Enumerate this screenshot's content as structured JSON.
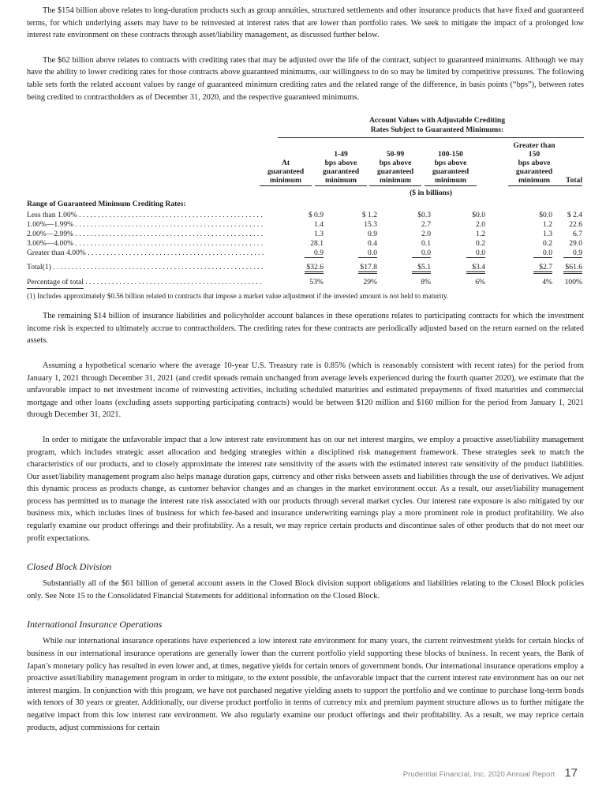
{
  "paragraphs": [
    "The $154 billion above relates to long-duration products such as group annuities, structured settlements and other insurance products that have fixed and guaranteed terms, for which underlying assets may have to be reinvested at interest rates that are lower than portfolio rates. We seek to mitigate the impact of a prolonged low interest rate environment on these contracts through asset/liability management, as discussed further below.",
    "The $62 billion above relates to contracts with crediting rates that may be adjusted over the life of the contract, subject to guaranteed minimums. Although we may have the ability to lower crediting rates for those contracts above guaranteed minimums, our willingness to do so may be limited by competitive pressures. The following table sets forth the related account values by range of guaranteed minimum crediting rates and the related range of the difference, in basis points (“bps”), between rates being credited to contractholders as of December 31, 2020, and the respective guaranteed minimums.",
    "The remaining $14 billion of insurance liabilities and policyholder account balances in these operations relates to participating contracts for which the investment income risk is expected to ultimately accrue to contractholders. The crediting rates for these contracts are periodically adjusted based on the return earned on the related assets.",
    "Assuming a hypothetical scenario where the average 10-year U.S. Treasury rate is 0.85% (which is reasonably consistent with recent rates) for the period from January 1, 2021 through December 31, 2021 (and credit spreads remain unchanged from average levels experienced during the fourth quarter 2020), we estimate that the unfavorable impact to net investment income of reinvesting activities, including scheduled maturities and estimated prepayments of fixed maturities and commercial mortgage and other loans (excluding assets supporting participating contracts) would be between $120 million and $160 million for the period from January 1, 2021 through December 31, 2021.",
    "In order to mitigate the unfavorable impact that a low interest rate environment has on our net interest margins, we employ a proactive asset/liability management program, which includes strategic asset allocation and hedging strategies within a disciplined risk management framework. These strategies seek to match the characteristics of our products, and to closely approximate the interest rate sensitivity of the assets with the estimated interest rate sensitivity of the product liabilities. Our asset/liability management program also helps manage duration gaps, currency and other risks between assets and liabilities through the use of derivatives. We adjust this dynamic process as products change, as customer behavior changes and as changes in the market environment occur. As a result, our asset/liability management process has permitted us to manage the interest rate risk associated with our products through several market cycles. Our interest rate exposure is also mitigated by our business mix, which includes lines of business for which fee-based and insurance underwriting earnings play a more prominent role in product profitability. We also regularly examine our product offerings and their profitability. As a result, we may reprice certain products and discontinue sales of other products that do not meet our profit expectations.",
    "Substantially all of the $61 billion of general account assets in the Closed Block division support obligations and liabilities relating to the Closed Block policies only. See Note 15 to the Consolidated Financial Statements for additional information on the Closed Block.",
    "While our international insurance operations have experienced a low interest rate environment for many years, the current reinvestment yields for certain blocks of business in our international insurance operations are generally lower than the current portfolio yield supporting these blocks of business. In recent years, the Bank of Japan’s monetary policy has resulted in even lower and, at times, negative yields for certain tenors of government bonds. Our international insurance operations employ a proactive asset/liability management program in order to mitigate, to the extent possible, the unfavorable impact that the current interest rate environment has on our net interest margins. In conjunction with this program, we have not purchased negative yielding assets to support the portfolio and we continue to purchase long-term bonds with tenors of 30 years or greater. Additionally, our diverse product portfolio in terms of currency mix and premium payment structure allows us to further mitigate the negative impact from this low interest rate environment. We also regularly examine our product offerings and their profitability. As a result, we may reprice certain products, adjust commissions for certain"
  ],
  "headings": [
    "Closed Block Division",
    "International Insurance Operations"
  ],
  "table": {
    "title_line1": "Account Values with Adjustable Crediting",
    "title_line2": "Rates Subject to Guaranteed Minimums:",
    "columns": [
      [
        "At",
        "guaranteed",
        "minimum"
      ],
      [
        "1-49",
        "bps above",
        "guaranteed",
        "minimum"
      ],
      [
        "50-99",
        "bps above",
        "guaranteed",
        "minimum"
      ],
      [
        "100-150",
        "bps above",
        "guaranteed",
        "minimum"
      ],
      [
        "Greater than",
        "150",
        "bps above",
        "guaranteed",
        "minimum"
      ],
      [
        "Total"
      ]
    ],
    "units": "($ in billions)",
    "range_label": "Range of Guaranteed Minimum Crediting Rates:",
    "rows": [
      {
        "label": "Less than 1.00%",
        "values": [
          "$ 0.9",
          "$ 1.2",
          "$0.3",
          "$0.0",
          "$0.0",
          "$ 2.4"
        ]
      },
      {
        "label": "1.00%—1.99%",
        "values": [
          "1.4",
          "15.3",
          "2.7",
          "2.0",
          "1.2",
          "22.6"
        ]
      },
      {
        "label": "2.00%—2.99%",
        "values": [
          "1.3",
          "0.9",
          "2.0",
          "1.2",
          "1.3",
          "6.7"
        ]
      },
      {
        "label": "3.00%—4.00%",
        "values": [
          "28.1",
          "0.4",
          "0.1",
          "0.2",
          "0.2",
          "29.0"
        ]
      },
      {
        "label": "Greater than 4.00%",
        "values": [
          "0.9",
          "0.0",
          "0.0",
          "0.0",
          "0.0",
          "0.9"
        ]
      },
      {
        "label": "Total(1)",
        "values": [
          "$32.6",
          "$17.8",
          "$5.1",
          "$3.4",
          "$2.7",
          "$61.6"
        ]
      },
      {
        "label": "Percentage of total",
        "values": [
          "53%",
          "29%",
          "8%",
          "6%",
          "4%",
          "100%"
        ]
      }
    ],
    "footnote": "(1)   Includes approximately $0.56 billion related to contracts that impose a market value adjustment if the invested amount is not held to maturity."
  },
  "footer": {
    "text": "Prudential Financial, Inc. 2020 Annual Report",
    "page": "17"
  }
}
